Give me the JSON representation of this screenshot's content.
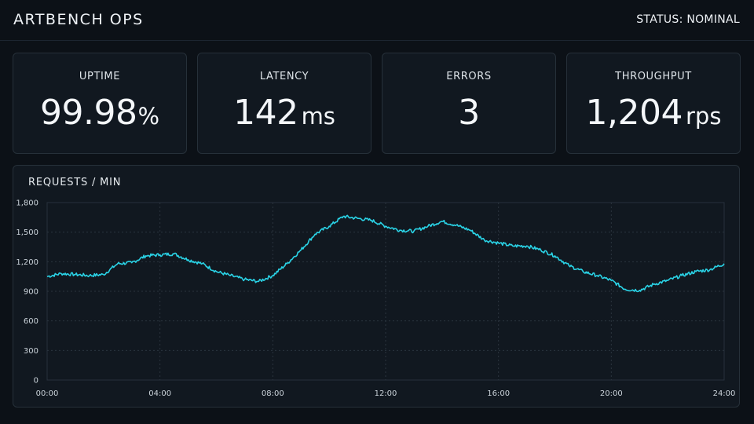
{
  "header": {
    "title": "ARTBENCH OPS",
    "status": "STATUS: NOMINAL"
  },
  "metrics": [
    {
      "label": "UPTIME",
      "value": "99.98",
      "unit": "%"
    },
    {
      "label": "LATENCY",
      "value": "142",
      "unit": "ms"
    },
    {
      "label": "ERRORS",
      "value": "3",
      "unit": ""
    },
    {
      "label": "THROUGHPUT",
      "value": "1,204",
      "unit": "rps"
    }
  ],
  "colors": {
    "line": "#2ad3e6",
    "background": "#0c1117",
    "panel": "#111820"
  },
  "chart_data": {
    "type": "line",
    "title": "REQUESTS / MIN",
    "xlabel": "",
    "ylabel": "",
    "xlim": [
      0,
      24
    ],
    "ylim": [
      0,
      1800
    ],
    "x_ticks": [
      0,
      4,
      8,
      12,
      16,
      20,
      24
    ],
    "x_tick_labels": [
      "00:00",
      "04:00",
      "08:00",
      "12:00",
      "16:00",
      "20:00",
      "24:00"
    ],
    "y_ticks": [
      0,
      300,
      600,
      900,
      1200,
      1500,
      1800
    ],
    "y_tick_labels": [
      "0",
      "300",
      "600",
      "900",
      "1,200",
      "1,500",
      "1,800"
    ],
    "grid": true,
    "series": [
      {
        "x": [
          0,
          0.5,
          1,
          1.5,
          2,
          2.5,
          3,
          3.5,
          4,
          4.5,
          5,
          5.5,
          6,
          6.5,
          7,
          7.5,
          8,
          8.5,
          9,
          9.5,
          10,
          10.5,
          11,
          11.5,
          12,
          12.5,
          13,
          13.5,
          14,
          14.5,
          15,
          15.5,
          16,
          16.5,
          17,
          17.5,
          18,
          18.5,
          19,
          19.5,
          20,
          20.5,
          21,
          21.5,
          22,
          22.5,
          23,
          23.5,
          24
        ],
        "y": [
          1050,
          1080,
          1070,
          1060,
          1070,
          1180,
          1190,
          1260,
          1270,
          1280,
          1220,
          1180,
          1100,
          1060,
          1020,
          1000,
          1060,
          1180,
          1320,
          1480,
          1560,
          1660,
          1640,
          1620,
          1560,
          1520,
          1510,
          1560,
          1610,
          1570,
          1520,
          1420,
          1390,
          1360,
          1360,
          1320,
          1260,
          1160,
          1100,
          1060,
          1010,
          920,
          910,
          970,
          1010,
          1060,
          1100,
          1120,
          1180
        ]
      }
    ]
  }
}
